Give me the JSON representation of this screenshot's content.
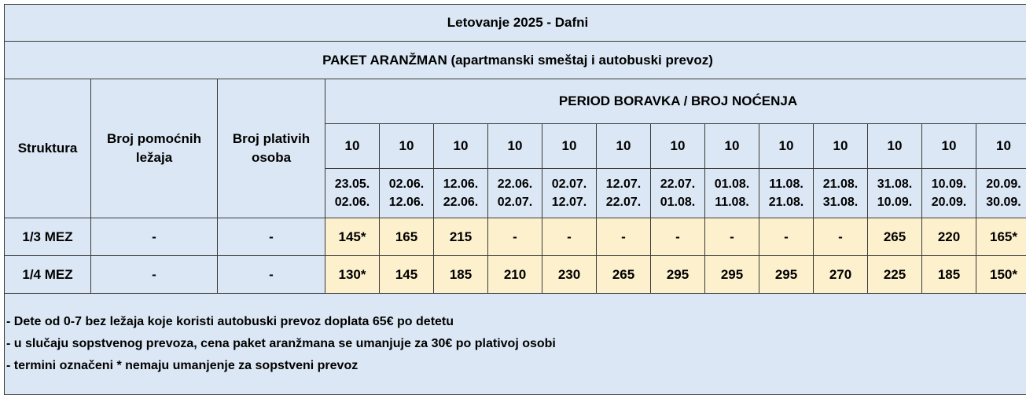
{
  "title": "Letovanje 2025 - Dafni",
  "subtitle": "PAKET ARANŽMAN (apartmanski smeštaj i autobuski prevoz)",
  "header": {
    "structure": "Struktura",
    "extra_beds_line1": "Broj pomoćnih",
    "extra_beds_line2": "ležaja",
    "paying_line1": "Broj plativih",
    "paying_line2": "osoba",
    "period": "PERIOD BORAVKA / BROJ NOĆENJA"
  },
  "periods": [
    {
      "nights": "10",
      "from": "23.05.",
      "to": "02.06."
    },
    {
      "nights": "10",
      "from": "02.06.",
      "to": "12.06."
    },
    {
      "nights": "10",
      "from": "12.06.",
      "to": "22.06."
    },
    {
      "nights": "10",
      "from": "22.06.",
      "to": "02.07."
    },
    {
      "nights": "10",
      "from": "02.07.",
      "to": "12.07."
    },
    {
      "nights": "10",
      "from": "12.07.",
      "to": "22.07."
    },
    {
      "nights": "10",
      "from": "22.07.",
      "to": "01.08."
    },
    {
      "nights": "10",
      "from": "01.08.",
      "to": "11.08."
    },
    {
      "nights": "10",
      "from": "11.08.",
      "to": "21.08."
    },
    {
      "nights": "10",
      "from": "21.08.",
      "to": "31.08."
    },
    {
      "nights": "10",
      "from": "31.08.",
      "to": "10.09."
    },
    {
      "nights": "10",
      "from": "10.09.",
      "to": "20.09."
    },
    {
      "nights": "10",
      "from": "20.09.",
      "to": "30.09."
    }
  ],
  "rows": [
    {
      "structure": "1/3 MEZ",
      "extra_beds": "-",
      "paying": "-",
      "prices": [
        "145*",
        "165",
        "215",
        "-",
        "-",
        "-",
        "-",
        "-",
        "-",
        "-",
        "265",
        "220",
        "165*"
      ]
    },
    {
      "structure": "1/4 MEZ",
      "extra_beds": "-",
      "paying": "-",
      "prices": [
        "130*",
        "145",
        "185",
        "210",
        "230",
        "265",
        "295",
        "295",
        "295",
        "270",
        "225",
        "185",
        "150*"
      ]
    }
  ],
  "notes": [
    "- Dete od 0-7 bez ležaja koje koristi autobuski prevoz doplata 65€ po detetu",
    "- u slučaju sopstvenog prevoza, cena paket aranžmana se umanjuje za 30€ po plativoj osobi",
    "- termini označeni * nemaju umanjenje za sopstveni prevoz"
  ],
  "colors": {
    "header_bg": "#dbe7f4",
    "price_bg": "#fdf0cc",
    "border": "#3a3a3a"
  }
}
